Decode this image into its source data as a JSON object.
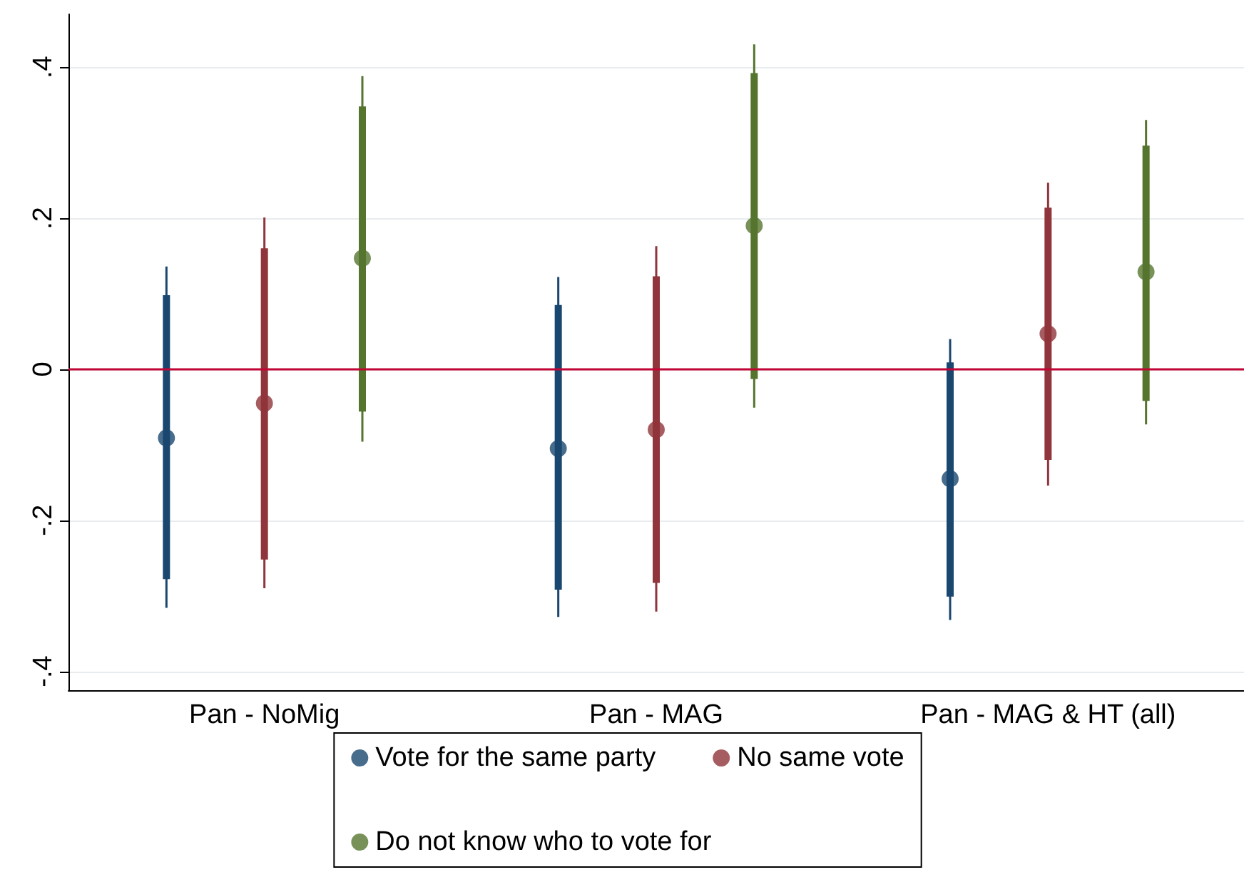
{
  "chart_data": {
    "type": "scatter",
    "categories": [
      "Pan - NoMig",
      "Pan - MAG",
      "Pan - MAG & HT (all)"
    ],
    "ylim": [
      -0.425,
      0.47
    ],
    "yticks": [
      {
        "value": -0.4,
        "label": "-.4"
      },
      {
        "value": -0.2,
        "label": "-.2"
      },
      0,
      {
        "value": 0.2,
        "label": ".2"
      },
      {
        "value": 0.4,
        "label": ".4"
      }
    ],
    "grid": "y",
    "legend": "bottom",
    "marker": "circle",
    "ref_lines": [
      {
        "axis": "y",
        "value": 0,
        "color": "#c10534"
      }
    ],
    "series": [
      {
        "name": "Vote for the same party",
        "color": "#1a476f",
        "values": [
          -0.091,
          -0.105,
          -0.145
        ],
        "errors": [
          [
            -0.316,
            0.136
          ],
          [
            -0.328,
            0.122
          ],
          [
            -0.332,
            0.04
          ]
        ]
      },
      {
        "name": "No same vote",
        "color": "#90353b",
        "values": [
          -0.045,
          -0.08,
          0.047
        ],
        "errors": [
          [
            -0.29,
            0.201
          ],
          [
            -0.321,
            0.163
          ],
          [
            -0.154,
            0.247
          ]
        ]
      },
      {
        "name": "Do not know who to vote for",
        "color": "#55752f",
        "values": [
          0.147,
          0.19,
          0.129
        ],
        "errors": [
          [
            -0.096,
            0.388
          ],
          [
            -0.051,
            0.43
          ],
          [
            -0.073,
            0.33
          ]
        ]
      },
      {
        "type": "bar",
        "color": "#1a476f",
        "base": [
          -0.278,
          -0.292,
          -0.301
        ],
        "values": [
          0.376,
          0.377,
          0.31
        ]
      },
      {
        "type": "bar",
        "color": "#90353b",
        "base": [
          -0.252,
          -0.283,
          -0.12
        ],
        "values": [
          0.412,
          0.406,
          0.334
        ]
      },
      {
        "type": "bar",
        "color": "#55752f",
        "base": [
          -0.056,
          -0.013,
          -0.042
        ],
        "values": [
          0.404,
          0.405,
          0.338
        ]
      }
    ]
  }
}
